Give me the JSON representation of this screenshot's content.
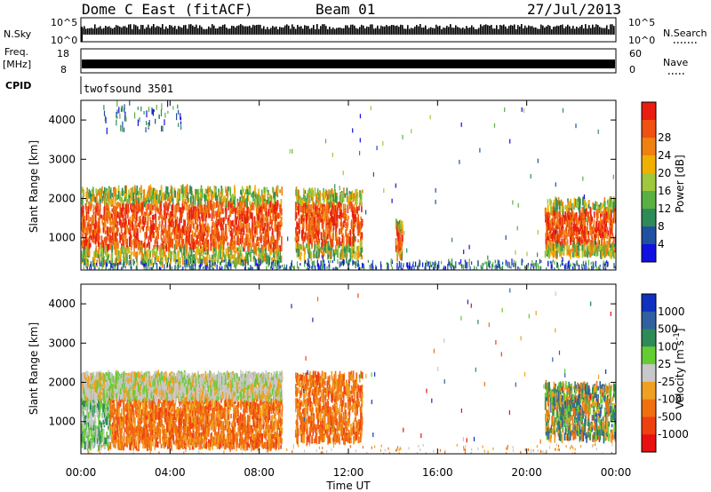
{
  "header": {
    "station": "Dome C East (fitACF)",
    "beam": "Beam 01",
    "date": "27/Jul/2013"
  },
  "summary_panels": {
    "nsky_label": "N.Sky",
    "nsearch_label": "N.Search",
    "nsky_ticks": [
      "10^5",
      "10^0"
    ],
    "nsearch_ticks": [
      "10^5",
      "10^0"
    ],
    "freq_label": "Freq.",
    "freq_unit": "[MHz]",
    "freq_ticks": [
      "18",
      "8"
    ],
    "nave_label": "Nave",
    "nave_ticks": [
      "60",
      "0"
    ],
    "cpid_label": "CPID",
    "cpid_value": "twofsound 3501"
  },
  "chart_data": [
    {
      "type": "heatmap",
      "title": "",
      "xlabel": "Time UT",
      "ylabel": "Slant Range [km]",
      "x_ticks": [
        "00:00",
        "04:00",
        "08:00",
        "12:00",
        "16:00",
        "20:00",
        "00:00"
      ],
      "x_range_hours": [
        0,
        24
      ],
      "y_ticks": [
        1000,
        2000,
        3000,
        4000
      ],
      "ylim": [
        180,
        4500
      ],
      "colorbar": {
        "label": "Power [dB]",
        "ticks": [
          "4",
          "8",
          "12",
          "16",
          "20",
          "24",
          "28"
        ],
        "colors": [
          "#1010e0",
          "#2050a0",
          "#2e8b57",
          "#5ab040",
          "#a0c83c",
          "#f0b000",
          "#f08010",
          "#f05010",
          "#e81e10"
        ]
      },
      "echo_regions": [
        {
          "t": [
            0.0,
            9.0
          ],
          "range": [
            350,
            2250
          ],
          "level": "strong"
        },
        {
          "t": [
            9.6,
            12.6
          ],
          "range": [
            500,
            2200
          ],
          "level": "strong"
        },
        {
          "t": [
            14.1,
            14.4
          ],
          "range": [
            500,
            1400
          ],
          "level": "strong"
        },
        {
          "t": [
            20.8,
            24.0
          ],
          "range": [
            550,
            1950
          ],
          "level": "strong"
        },
        {
          "t": [
            0.0,
            24.0
          ],
          "range": [
            180,
            400
          ],
          "level": "sparse"
        },
        {
          "t": [
            1.0,
            4.5
          ],
          "range": [
            3700,
            4450
          ],
          "level": "sparse"
        }
      ]
    },
    {
      "type": "heatmap",
      "title": "",
      "xlabel": "Time UT",
      "ylabel": "Slant Range [km]",
      "x_ticks": [
        "00:00",
        "04:00",
        "08:00",
        "12:00",
        "16:00",
        "20:00",
        "00:00"
      ],
      "x_range_hours": [
        0,
        24
      ],
      "y_ticks": [
        1000,
        2000,
        3000,
        4000
      ],
      "ylim": [
        180,
        4500
      ],
      "colorbar": {
        "label": "Velocity [m s^-1]",
        "ticks": [
          "1000",
          "500",
          "100",
          "25",
          "-25",
          "-100",
          "-500",
          "-1000"
        ],
        "colors": [
          "#1030c0",
          "#3060a0",
          "#2e8b57",
          "#66cc33",
          "#c8c8c8",
          "#f0a020",
          "#f07010",
          "#f04010",
          "#e81010"
        ]
      },
      "echo_regions": [
        {
          "t": [
            0.0,
            1.3
          ],
          "range": [
            350,
            1700
          ],
          "level": "negative-green"
        },
        {
          "t": [
            1.3,
            9.0
          ],
          "range": [
            350,
            1600
          ],
          "level": "orange"
        },
        {
          "t": [
            0.0,
            9.0
          ],
          "range": [
            1600,
            2200
          ],
          "level": "grey"
        },
        {
          "t": [
            9.6,
            12.6
          ],
          "range": [
            500,
            2200
          ],
          "level": "orange"
        },
        {
          "t": [
            20.8,
            24.0
          ],
          "range": [
            550,
            1950
          ],
          "level": "green"
        }
      ]
    }
  ]
}
